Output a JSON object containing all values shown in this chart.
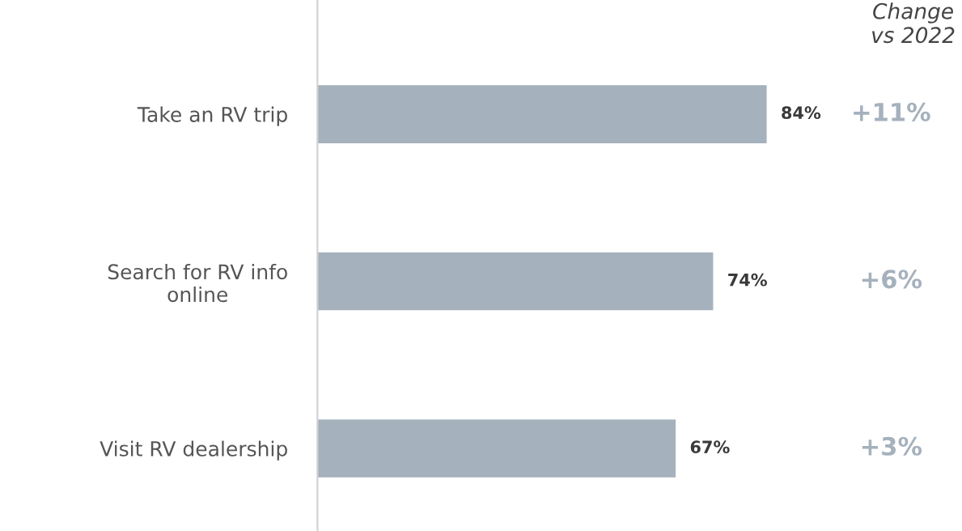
{
  "chart_data": {
    "type": "bar",
    "orientation": "horizontal",
    "categories": [
      "Take an RV trip",
      "Search for RV info\nonline",
      "Visit RV dealership"
    ],
    "values": [
      84,
      74,
      67
    ],
    "value_labels": [
      "84%",
      "74%",
      "67%"
    ],
    "color": "#a5b1bd",
    "grid": false,
    "legend": false,
    "annotations": [
      "Change\nvs 2022",
      "+11%",
      "+6%",
      "+3%"
    ]
  }
}
